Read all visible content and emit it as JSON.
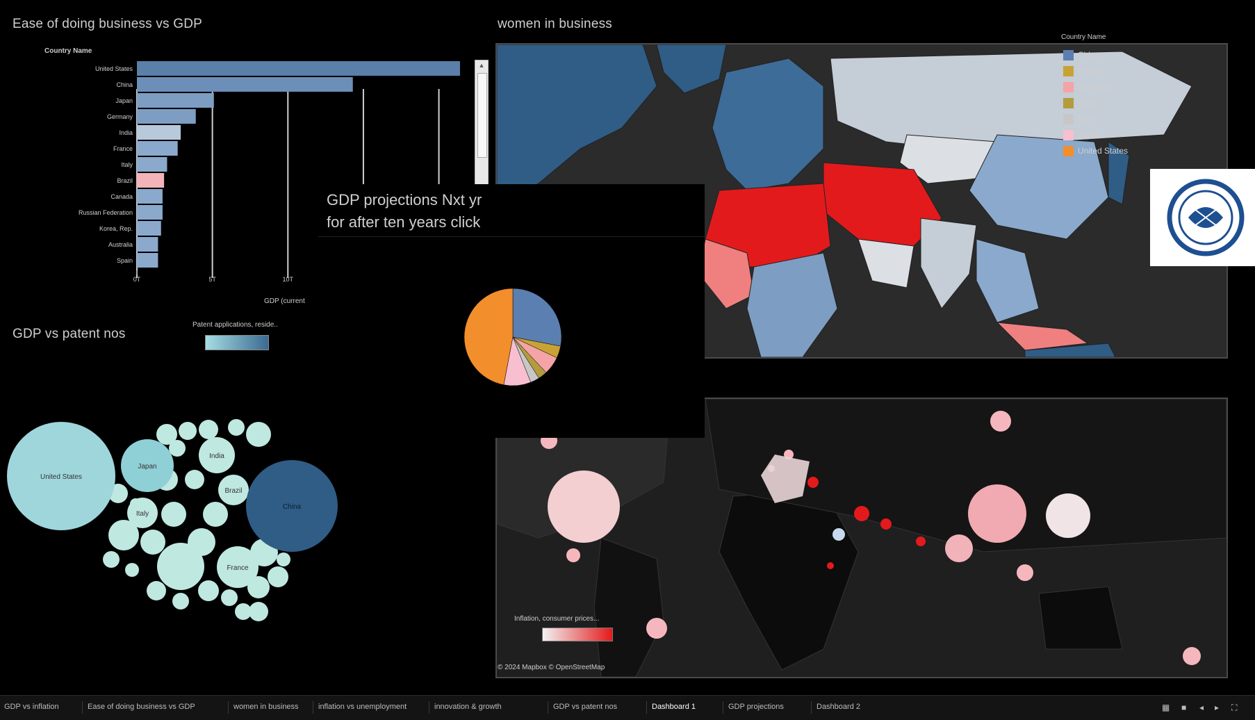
{
  "titles": {
    "ease": "Ease of doing business vs GDP",
    "women": "women in business",
    "gdp_patent": "GDP vs patent nos",
    "gdp_proj_line1": "GDP projections Nxt yr",
    "gdp_proj_line2": "for after ten years click"
  },
  "bar_chart": {
    "header": "Country Name",
    "xlabel": "GDP (current",
    "ticks": [
      "0T",
      "5T",
      "10T"
    ],
    "categories": [
      "United States",
      "China",
      "Japan",
      "Germany",
      "India",
      "France",
      "Italy",
      "Brazil",
      "Canada",
      "Russian Federation",
      "Korea, Rep.",
      "Australia",
      "Spain"
    ],
    "values": [
      21.4,
      14.3,
      5.1,
      3.9,
      2.9,
      2.7,
      2.0,
      1.8,
      1.7,
      1.7,
      1.6,
      1.4,
      1.4
    ],
    "colors": [
      "#5a7fa8",
      "#6b8fb8",
      "#7d9dc3",
      "#7d9dc3",
      "#b9c9dc",
      "#8aa9cc",
      "#8aa9cc",
      "#f2b4b8",
      "#8aa9cc",
      "#8aa9cc",
      "#8aa9cc",
      "#8aa9cc",
      "#8aa9cc"
    ]
  },
  "patent_legend": {
    "label": "Patent applications, reside.."
  },
  "bubbles": [
    {
      "label": "United States",
      "color": "#9fd6dc"
    },
    {
      "label": "Japan",
      "color": "#8fcfd6"
    },
    {
      "label": "India",
      "color": "#bfe8e0"
    },
    {
      "label": "Italy",
      "color": "#bfe8e0"
    },
    {
      "label": "Brazil",
      "color": "#bfe8e0"
    },
    {
      "label": "China",
      "color": "#2f5d86"
    },
    {
      "label": "France",
      "color": "#bfe8e0"
    }
  ],
  "pie": {
    "legend_title": "Country Name",
    "legend": [
      {
        "label": "China",
        "color": "#5b7fb0"
      },
      {
        "label": "France",
        "color": "#c8a234"
      },
      {
        "label": "Germany",
        "color": "#f4a3a6"
      },
      {
        "label": "India",
        "color": "#b39b3e"
      },
      {
        "label": "Italy",
        "color": "#c7c7c7"
      },
      {
        "label": "Japan",
        "color": "#f7bfd0"
      },
      {
        "label": "United States",
        "color": "#f28e2b"
      }
    ],
    "slice_values": [
      28,
      4,
      6,
      3,
      3,
      9,
      47
    ]
  },
  "inflation_legend": {
    "label": "Inflation, consumer prices..."
  },
  "map_credit": "© 2024 Mapbox © OpenStreetMap",
  "tabs": [
    {
      "label": "GDP vs inflation"
    },
    {
      "label": "Ease of doing business vs GDP"
    },
    {
      "label": "women in business"
    },
    {
      "label": "inflation vs unemployment"
    },
    {
      "label": "innovation & growth"
    },
    {
      "label": "GDP vs patent nos"
    },
    {
      "label": "Dashboard 1"
    },
    {
      "label": "GDP projections"
    },
    {
      "label": "Dashboard 2"
    }
  ],
  "colors": {
    "background": "#000000",
    "map_land_light": "#c5cdd6",
    "map_blue": "#2f5d86",
    "map_red": "#e31a1c"
  }
}
